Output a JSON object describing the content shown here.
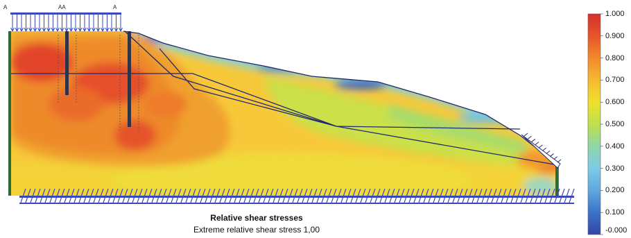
{
  "plot": {
    "title": "Relative shear stresses",
    "subtitle": "Extreme relative shear stress 1,00",
    "top_markers": [
      "A",
      "AA",
      "A"
    ]
  },
  "legend": {
    "levels": [
      "1.000",
      "0.900",
      "0.800",
      "0.700",
      "0.600",
      "0.500",
      "0.400",
      "0.300",
      "0.200",
      "0.100",
      "-0.000"
    ],
    "colors": [
      "#d2302a",
      "#e8542a",
      "#f28a2c",
      "#f7b92f",
      "#efe12c",
      "#bfe04c",
      "#8fd6a8",
      "#7ccbe8",
      "#5ea8df",
      "#3a72c9",
      "#3446a4"
    ]
  },
  "palette": {
    "outline": "#20286e",
    "support_blue": "#3b49b8",
    "pile": "#2e3446",
    "edge_green": "#2b6b3a"
  }
}
